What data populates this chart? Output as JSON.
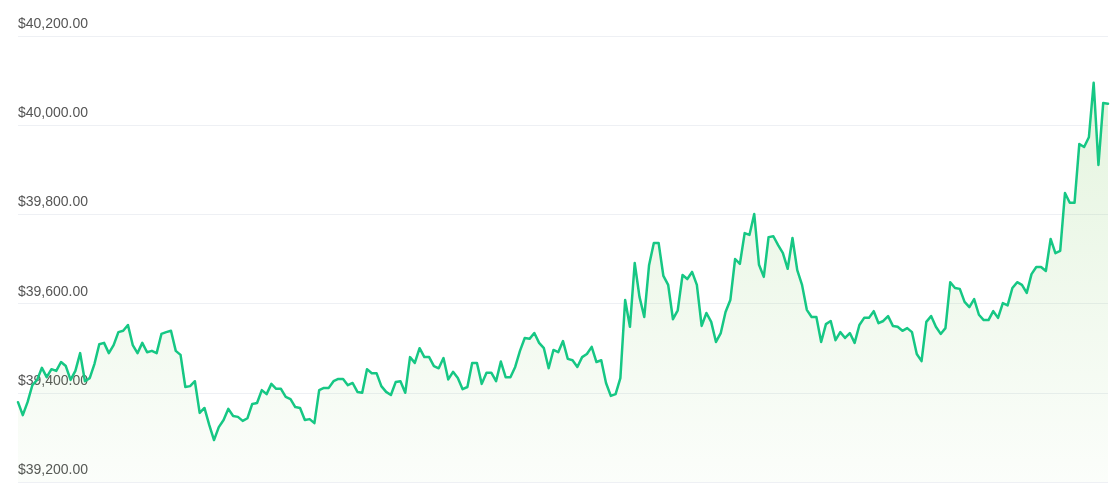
{
  "chart_data": {
    "type": "area",
    "marker": "none",
    "line_style": "solid",
    "grid": "y",
    "ylim": [
      39200,
      40200
    ],
    "yticks": [
      {
        "value": 39200,
        "label": "$39,200.00"
      },
      {
        "value": 39400,
        "label": "$39,400.00"
      },
      {
        "value": 39600,
        "label": "$39,600.00"
      },
      {
        "value": 39800,
        "label": "$39,800.00"
      },
      {
        "value": 40000,
        "label": "$40,000.00"
      },
      {
        "value": 40200,
        "label": "$40,200.00"
      }
    ],
    "series": [
      {
        "color": "#16c784",
        "values": [
          39379,
          39350,
          39379,
          39417,
          39429,
          39456,
          39435,
          39453,
          39449,
          39469,
          39460,
          39429,
          39449,
          39489,
          39426,
          39433,
          39465,
          39509,
          39512,
          39489,
          39507,
          39536,
          39539,
          39552,
          39507,
          39489,
          39512,
          39491,
          39494,
          39489,
          39532,
          39536,
          39539,
          39494,
          39485,
          39413,
          39415,
          39426,
          39355,
          39366,
          39328,
          39294,
          39323,
          39339,
          39364,
          39348,
          39346,
          39337,
          39343,
          39375,
          39377,
          39406,
          39397,
          39420,
          39409,
          39409,
          39391,
          39386,
          39368,
          39366,
          39339,
          39341,
          39332,
          39406,
          39411,
          39411,
          39426,
          39431,
          39431,
          39417,
          39422,
          39402,
          39400,
          39453,
          39444,
          39444,
          39415,
          39402,
          39395,
          39424,
          39426,
          39400,
          39480,
          39467,
          39500,
          39480,
          39480,
          39460,
          39455,
          39478,
          39430,
          39447,
          39433,
          39408,
          39413,
          39467,
          39467,
          39420,
          39445,
          39445,
          39426,
          39470,
          39435,
          39435,
          39458,
          39494,
          39523,
          39521,
          39534,
          39512,
          39500,
          39455,
          39496,
          39491,
          39516,
          39476,
          39473,
          39458,
          39480,
          39487,
          39503,
          39469,
          39473,
          39422,
          39393,
          39397,
          39433,
          39608,
          39548,
          39691,
          39615,
          39570,
          39686,
          39736,
          39736,
          39662,
          39642,
          39565,
          39585,
          39664,
          39655,
          39671,
          39642,
          39550,
          39579,
          39559,
          39514,
          39534,
          39581,
          39608,
          39700,
          39689,
          39758,
          39754,
          39801,
          39687,
          39660,
          39749,
          39751,
          39731,
          39713,
          39678,
          39747,
          39675,
          39642,
          39586,
          39570,
          39570,
          39514,
          39554,
          39561,
          39518,
          39536,
          39523,
          39534,
          39512,
          39552,
          39568,
          39568,
          39583,
          39556,
          39561,
          39572,
          39550,
          39548,
          39539,
          39545,
          39536,
          39487,
          39471,
          39559,
          39572,
          39548,
          39532,
          39545,
          39648,
          39635,
          39633,
          39604,
          39592,
          39610,
          39575,
          39563,
          39563,
          39583,
          39568,
          39601,
          39596,
          39635,
          39648,
          39642,
          39624,
          39666,
          39682,
          39682,
          39673,
          39745,
          39713,
          39718,
          39848,
          39826,
          39826,
          39958,
          39951,
          39973,
          40095,
          39911,
          40050,
          40048
        ]
      }
    ]
  }
}
